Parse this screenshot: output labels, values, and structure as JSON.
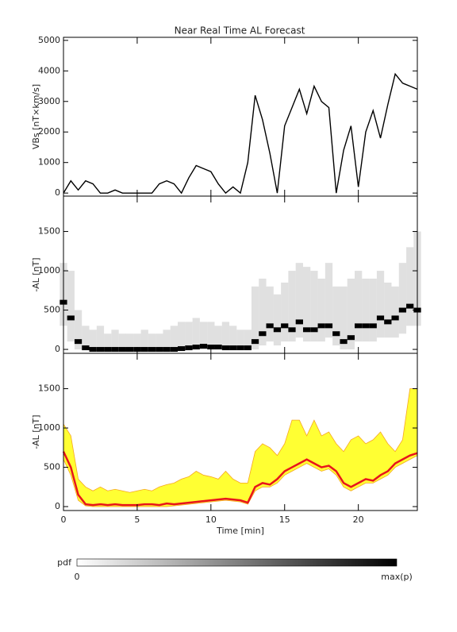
{
  "chart_data": [
    {
      "type": "line",
      "title": "Near Real Time AL Forecast",
      "ylabel": "VBs [nT×km/s]",
      "color": "#000000",
      "x": [
        0,
        0.5,
        1,
        1.5,
        2,
        2.5,
        3,
        3.5,
        4,
        4.5,
        5,
        5.5,
        6,
        6.5,
        7,
        7.5,
        8,
        8.5,
        9,
        9.5,
        10,
        10.5,
        11,
        11.5,
        12,
        12.5,
        13,
        13.5,
        14,
        14.5,
        15,
        15.5,
        16,
        16.5,
        17,
        17.5,
        18,
        18.5,
        19,
        19.5,
        20,
        20.5,
        21,
        21.5,
        22,
        22.5,
        23,
        23.5,
        24
      ],
      "values": [
        0,
        400,
        100,
        400,
        300,
        0,
        0,
        100,
        0,
        0,
        0,
        0,
        0,
        300,
        400,
        300,
        0,
        500,
        900,
        800,
        700,
        300,
        0,
        200,
        0,
        1000,
        3200,
        2400,
        1300,
        0,
        2200,
        2800,
        3400,
        2600,
        3500,
        3000,
        2800,
        0,
        1400,
        2200,
        200,
        2000,
        2700,
        1800,
        2900,
        3900,
        3600,
        3500,
        3400
      ],
      "xlim": [
        0,
        24
      ],
      "xticks": [
        0,
        5,
        10,
        15,
        20
      ],
      "ylim": [
        -100,
        5100
      ],
      "yticks": [
        0,
        1000,
        2000,
        3000,
        4000,
        5000
      ]
    },
    {
      "type": "density",
      "ylabel": "-AL [nT]",
      "color": "#000000",
      "x": [
        0,
        0.5,
        1,
        1.5,
        2,
        2.5,
        3,
        3.5,
        4,
        4.5,
        5,
        5.5,
        6,
        6.5,
        7,
        7.5,
        8,
        8.5,
        9,
        9.5,
        10,
        10.5,
        11,
        11.5,
        12,
        12.5,
        13,
        13.5,
        14,
        14.5,
        15,
        15.5,
        16,
        16.5,
        17,
        17.5,
        18,
        18.5,
        19,
        19.5,
        20,
        20.5,
        21,
        21.5,
        22,
        22.5,
        23,
        23.5,
        24
      ],
      "values": [
        600,
        400,
        100,
        20,
        0,
        0,
        0,
        0,
        0,
        0,
        0,
        0,
        0,
        0,
        0,
        0,
        10,
        20,
        30,
        40,
        30,
        30,
        20,
        20,
        20,
        20,
        100,
        200,
        300,
        250,
        300,
        250,
        350,
        250,
        250,
        300,
        300,
        200,
        100,
        150,
        300,
        300,
        300,
        400,
        350,
        400,
        500,
        550,
        500
      ],
      "lower": [
        300,
        100,
        0,
        0,
        0,
        0,
        0,
        0,
        0,
        0,
        0,
        0,
        0,
        0,
        0,
        0,
        0,
        0,
        0,
        0,
        0,
        0,
        0,
        0,
        0,
        0,
        0,
        50,
        100,
        50,
        100,
        100,
        150,
        100,
        100,
        100,
        150,
        50,
        0,
        0,
        100,
        100,
        100,
        150,
        150,
        150,
        200,
        300,
        300
      ],
      "upper": [
        1100,
        1000,
        500,
        300,
        250,
        300,
        200,
        250,
        200,
        200,
        200,
        250,
        200,
        200,
        250,
        300,
        350,
        350,
        400,
        350,
        350,
        300,
        350,
        300,
        250,
        250,
        800,
        900,
        800,
        700,
        850,
        1000,
        1100,
        1050,
        1000,
        900,
        1100,
        800,
        800,
        900,
        1000,
        900,
        900,
        1000,
        850,
        800,
        1100,
        1300,
        1500
      ],
      "xlim": [
        0,
        24
      ],
      "xticks": [
        0,
        5,
        10,
        15,
        20
      ],
      "ylim": [
        -50,
        1950
      ],
      "yticks": [
        0,
        500,
        1000,
        1500
      ]
    },
    {
      "type": "band",
      "ylabel": "-AL [nT]",
      "xlabel": "Time [min]",
      "color": "#e8141c",
      "band_color": "#ffff33",
      "band_edge": "#f5a623",
      "x": [
        0,
        0.5,
        1,
        1.5,
        2,
        2.5,
        3,
        3.5,
        4,
        4.5,
        5,
        5.5,
        6,
        6.5,
        7,
        7.5,
        8,
        8.5,
        9,
        9.5,
        10,
        10.5,
        11,
        11.5,
        12,
        12.5,
        13,
        13.5,
        14,
        14.5,
        15,
        15.5,
        16,
        16.5,
        17,
        17.5,
        18,
        18.5,
        19,
        19.5,
        20,
        20.5,
        21,
        21.5,
        22,
        22.5,
        23,
        23.5,
        24
      ],
      "values": [
        700,
        500,
        150,
        30,
        20,
        30,
        20,
        30,
        20,
        20,
        20,
        30,
        30,
        20,
        40,
        30,
        40,
        50,
        60,
        70,
        80,
        90,
        100,
        90,
        80,
        50,
        250,
        300,
        280,
        350,
        450,
        500,
        550,
        600,
        550,
        500,
        520,
        450,
        300,
        250,
        300,
        350,
        330,
        400,
        450,
        550,
        600,
        650,
        680
      ],
      "lower": [
        600,
        400,
        80,
        10,
        0,
        0,
        0,
        0,
        0,
        0,
        0,
        0,
        0,
        0,
        0,
        10,
        20,
        30,
        40,
        50,
        60,
        70,
        80,
        70,
        60,
        30,
        200,
        250,
        250,
        300,
        400,
        450,
        500,
        550,
        500,
        450,
        480,
        400,
        250,
        200,
        250,
        300,
        300,
        350,
        400,
        500,
        550,
        600,
        650
      ],
      "upper": [
        1050,
        900,
        350,
        250,
        200,
        250,
        200,
        220,
        200,
        180,
        200,
        220,
        200,
        250,
        280,
        300,
        350,
        380,
        450,
        400,
        380,
        350,
        450,
        350,
        300,
        300,
        700,
        800,
        750,
        650,
        800,
        1100,
        1100,
        900,
        1100,
        900,
        950,
        800,
        700,
        850,
        900,
        800,
        850,
        950,
        800,
        700,
        850,
        1500,
        1500
      ],
      "xlim": [
        0,
        24
      ],
      "xticks": [
        0,
        5,
        10,
        15,
        20
      ],
      "ylim": [
        -50,
        1950
      ],
      "yticks": [
        0,
        500,
        1000,
        1500
      ]
    }
  ],
  "colorbar": {
    "label": "pdf",
    "min_label": "0",
    "max_label": "max(p)"
  }
}
